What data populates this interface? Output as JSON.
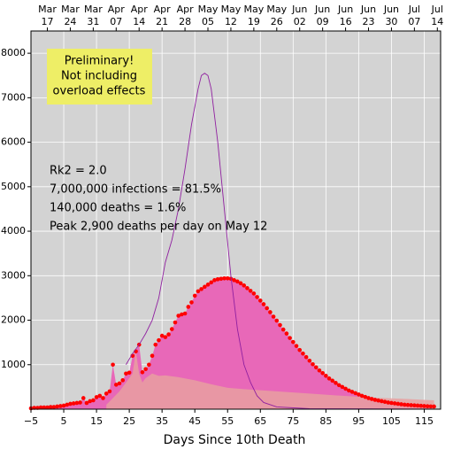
{
  "chart_data": {
    "type": "line",
    "xlabel": "Days Since 10th Death",
    "xlim": [
      -5,
      120
    ],
    "ylim": [
      0,
      8500
    ],
    "xticks": [
      {
        "value": -5,
        "label": "−5"
      },
      5,
      15,
      25,
      35,
      45,
      55,
      65,
      75,
      85,
      95,
      105,
      115
    ],
    "yticks": [
      1000,
      2000,
      3000,
      4000,
      5000,
      6000,
      7000,
      8000
    ],
    "x2ticks": [
      0,
      7,
      14,
      21,
      28,
      35,
      42,
      49,
      56,
      63,
      70,
      77,
      84,
      91,
      98,
      105,
      112,
      119
    ],
    "x2tick_months": [
      "Mar",
      "Mar",
      "Mar",
      "Apr",
      "Apr",
      "Apr",
      "Apr",
      "May",
      "May",
      "May",
      "May",
      "Jun",
      "Jun",
      "Jun",
      "Jun",
      "Jun",
      "Jul",
      "Jul"
    ],
    "x2tick_days": [
      "17",
      "24",
      "31",
      "07",
      "14",
      "21",
      "28",
      "05",
      "12",
      "19",
      "26",
      "02",
      "09",
      "16",
      "23",
      "30",
      "07",
      "14"
    ],
    "grid": true,
    "background": "#d3d3d3",
    "note": [
      "Preliminary!",
      "Not including",
      "overload effects"
    ],
    "note_color": "#eeee66",
    "annotations": [
      "Rk2 = 2.0",
      "7,000,000 infections = 81.5%",
      "140,000 deaths = 1.6%",
      "Peak 2,900 deaths per day on May 12"
    ],
    "series": [
      {
        "kind": "dots",
        "color": "#ff0000",
        "fill": "#e868b8",
        "x": [
          -5,
          -4,
          -3,
          -2,
          -1,
          0,
          1,
          2,
          3,
          4,
          5,
          6,
          7,
          8,
          9,
          10,
          11,
          12,
          13,
          14,
          15,
          16,
          17,
          18,
          19,
          20,
          21,
          22,
          23,
          24,
          25,
          26,
          27,
          28,
          29,
          30,
          31,
          32,
          33,
          34,
          35,
          36,
          37,
          38,
          39,
          40,
          41,
          42,
          43,
          44,
          45,
          46,
          47,
          48,
          49,
          50,
          51,
          52,
          53,
          54,
          55,
          56,
          57,
          58,
          59,
          60,
          61,
          62,
          63,
          64,
          65,
          66,
          67,
          68,
          69,
          70,
          71,
          72,
          73,
          74,
          75,
          76,
          77,
          78,
          79,
          80,
          81,
          82,
          83,
          84,
          85,
          86,
          87,
          88,
          89,
          90,
          91,
          92,
          93,
          94,
          95,
          96,
          97,
          98,
          99,
          100,
          101,
          102,
          103,
          104,
          105,
          106,
          107,
          108,
          109,
          110,
          111,
          112,
          113,
          114,
          115,
          116,
          117,
          118
        ],
        "values": [
          20,
          30,
          30,
          40,
          40,
          40,
          50,
          50,
          60,
          70,
          80,
          100,
          120,
          130,
          140,
          150,
          250,
          140,
          180,
          200,
          270,
          300,
          250,
          350,
          400,
          1000,
          550,
          580,
          650,
          800,
          820,
          1200,
          1300,
          1450,
          830,
          900,
          1000,
          1200,
          1450,
          1550,
          1650,
          1620,
          1680,
          1800,
          1950,
          2100,
          2130,
          2150,
          2300,
          2400,
          2550,
          2650,
          2700,
          2750,
          2800,
          2850,
          2900,
          2920,
          2930,
          2940,
          2940,
          2930,
          2900,
          2870,
          2830,
          2780,
          2720,
          2660,
          2600,
          2520,
          2440,
          2360,
          2270,
          2180,
          2080,
          1990,
          1890,
          1790,
          1700,
          1600,
          1510,
          1420,
          1330,
          1250,
          1170,
          1090,
          1010,
          940,
          870,
          810,
          750,
          690,
          640,
          590,
          540,
          500,
          460,
          420,
          390,
          360,
          330,
          300,
          275,
          250,
          230,
          210,
          195,
          180,
          165,
          150,
          140,
          130,
          120,
          110,
          100,
          95,
          90,
          85,
          80,
          75,
          70,
          65,
          62,
          60
        ]
      },
      {
        "kind": "area",
        "color": "#e8a0a0",
        "x": [
          18,
          20,
          22,
          24,
          26,
          27,
          28,
          29,
          30,
          32,
          34,
          36,
          40,
          45,
          50,
          55,
          60,
          70,
          80,
          90,
          100,
          110,
          118
        ],
        "values": [
          100,
          250,
          400,
          600,
          800,
          1300,
          800,
          600,
          700,
          800,
          750,
          760,
          720,
          650,
          560,
          480,
          450,
          400,
          350,
          300,
          260,
          230,
          200
        ]
      },
      {
        "kind": "line",
        "color": "#9020a0",
        "x": [
          24,
          26,
          28,
          30,
          32,
          34,
          36,
          38,
          40,
          42,
          44,
          46,
          47,
          48,
          49,
          50,
          52,
          54,
          56,
          58,
          60,
          62,
          64,
          66,
          70,
          80,
          118
        ],
        "values": [
          1000,
          1250,
          1450,
          1700,
          2000,
          2500,
          3300,
          3800,
          4500,
          5400,
          6400,
          7200,
          7500,
          7550,
          7500,
          7200,
          6000,
          4500,
          3000,
          1800,
          1000,
          600,
          300,
          150,
          50,
          10,
          0
        ]
      }
    ]
  }
}
